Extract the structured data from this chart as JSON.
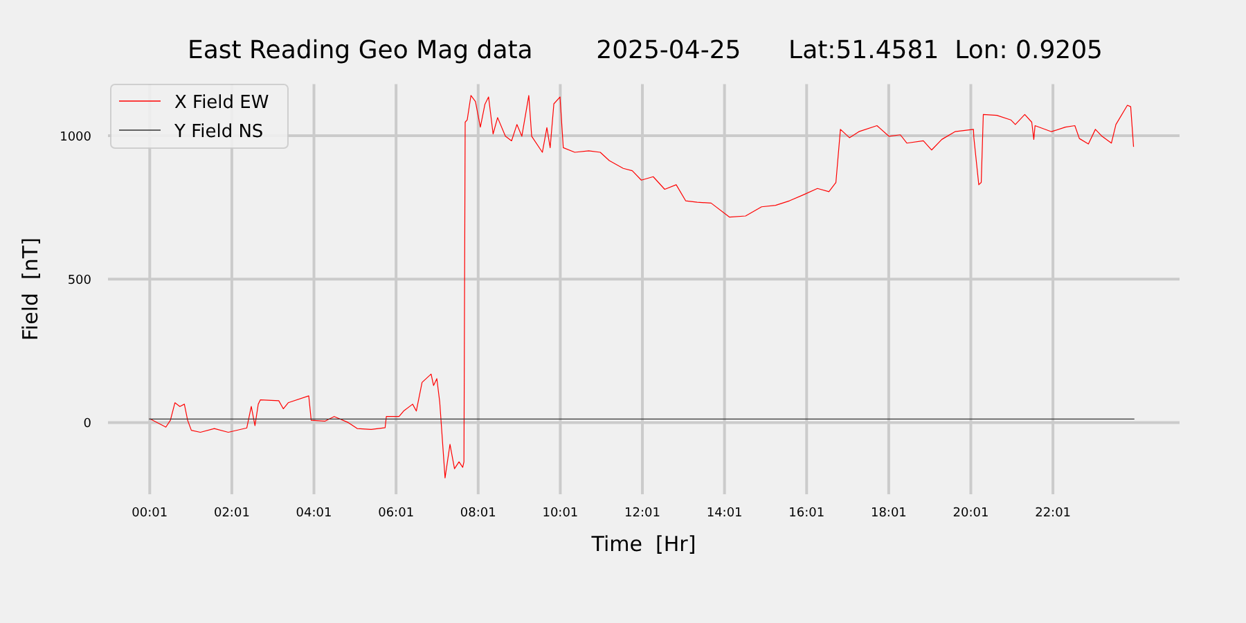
{
  "chart_data": {
    "type": "line",
    "title": "East Reading Geo Mag data        2025-04-25      Lat:51.4581  Lon: 0.9205",
    "xlabel": "Time  [Hr]",
    "ylabel": "Field  [nT]",
    "xlim": [
      -1,
      25.1
    ],
    "ylim": [
      -250,
      1180
    ],
    "yticks": [
      0,
      500,
      1000
    ],
    "xticks": [
      {
        "value": 0.0167,
        "label": "00:01"
      },
      {
        "value": 2.0167,
        "label": "02:01"
      },
      {
        "value": 4.0167,
        "label": "04:01"
      },
      {
        "value": 6.0167,
        "label": "06:01"
      },
      {
        "value": 8.0167,
        "label": "08:01"
      },
      {
        "value": 10.0167,
        "label": "10:01"
      },
      {
        "value": 12.0167,
        "label": "12:01"
      },
      {
        "value": 14.0167,
        "label": "14:01"
      },
      {
        "value": 16.0167,
        "label": "16:01"
      },
      {
        "value": 18.0167,
        "label": "18:01"
      },
      {
        "value": 20.0167,
        "label": "20:01"
      },
      {
        "value": 22.0167,
        "label": "22:01"
      }
    ],
    "grid": true,
    "legend": "top left",
    "series": [
      {
        "name": "X Field EW",
        "color": "#ff0000",
        "x": [
          0.02,
          0.41,
          0.52,
          0.63,
          0.75,
          0.86,
          0.94,
          1.03,
          1.25,
          1.59,
          1.93,
          2.38,
          2.49,
          2.58,
          2.66,
          2.71,
          3.16,
          3.27,
          3.39,
          3.89,
          3.95,
          4.29,
          4.51,
          4.85,
          5.07,
          5.41,
          5.75,
          5.78,
          6.09,
          6.2,
          6.42,
          6.51,
          6.65,
          6.87,
          6.93,
          7.01,
          7.08,
          7.21,
          7.33,
          7.44,
          7.55,
          7.64,
          7.67,
          7.7,
          7.75,
          7.84,
          7.95,
          8.07,
          8.18,
          8.27,
          8.38,
          8.49,
          8.68,
          8.83,
          8.96,
          9.08,
          9.25,
          9.32,
          9.58,
          9.69,
          9.77,
          9.86,
          10.01,
          10.09,
          10.37,
          10.71,
          10.99,
          11.21,
          11.55,
          11.77,
          11.99,
          12.28,
          12.56,
          12.84,
          13.07,
          13.35,
          13.69,
          14.14,
          14.53,
          14.92,
          15.26,
          15.6,
          15.94,
          16.28,
          16.56,
          16.73,
          16.84,
          17.06,
          17.29,
          17.73,
          18.02,
          18.3,
          18.46,
          18.86,
          19.06,
          19.31,
          19.63,
          20.08,
          20.09,
          20.21,
          20.27,
          20.32,
          20.65,
          20.99,
          21.1,
          21.33,
          21.5,
          21.55,
          21.58,
          21.98,
          22.32,
          22.55,
          22.66,
          22.88,
          23.05,
          23.21,
          23.44,
          23.55,
          23.83,
          23.91,
          23.98
        ],
        "values": [
          13,
          -16,
          8,
          69,
          56,
          64,
          8,
          -27,
          -34,
          -21,
          -34,
          -19,
          56,
          -11,
          64,
          79,
          76,
          48,
          69,
          93,
          8,
          5,
          21,
          0,
          -21,
          -24,
          -18,
          21,
          21,
          40,
          64,
          40,
          140,
          169,
          129,
          153,
          72,
          -193,
          -76,
          -161,
          -137,
          -156,
          -137,
          1047,
          1055,
          1140,
          1119,
          1030,
          1109,
          1135,
          1006,
          1063,
          998,
          982,
          1039,
          998,
          1140,
          998,
          942,
          1028,
          958,
          1111,
          1135,
          958,
          942,
          947,
          942,
          913,
          886,
          878,
          845,
          857,
          813,
          829,
          773,
          768,
          765,
          716,
          720,
          752,
          757,
          773,
          794,
          816,
          805,
          837,
          1022,
          993,
          1014,
          1035,
          998,
          1003,
          974,
          982,
          950,
          987,
          1014,
          1022,
          993,
          829,
          837,
          1074,
          1071,
          1055,
          1039,
          1074,
          1047,
          987,
          1035,
          1014,
          1030,
          1035,
          990,
          971,
          1022,
          998,
          974,
          1039,
          1106,
          1101,
          961
        ]
      },
      {
        "name": "Y Field NS",
        "color": "#333333",
        "x": [
          0,
          24
        ],
        "values": [
          12,
          12
        ]
      }
    ]
  }
}
